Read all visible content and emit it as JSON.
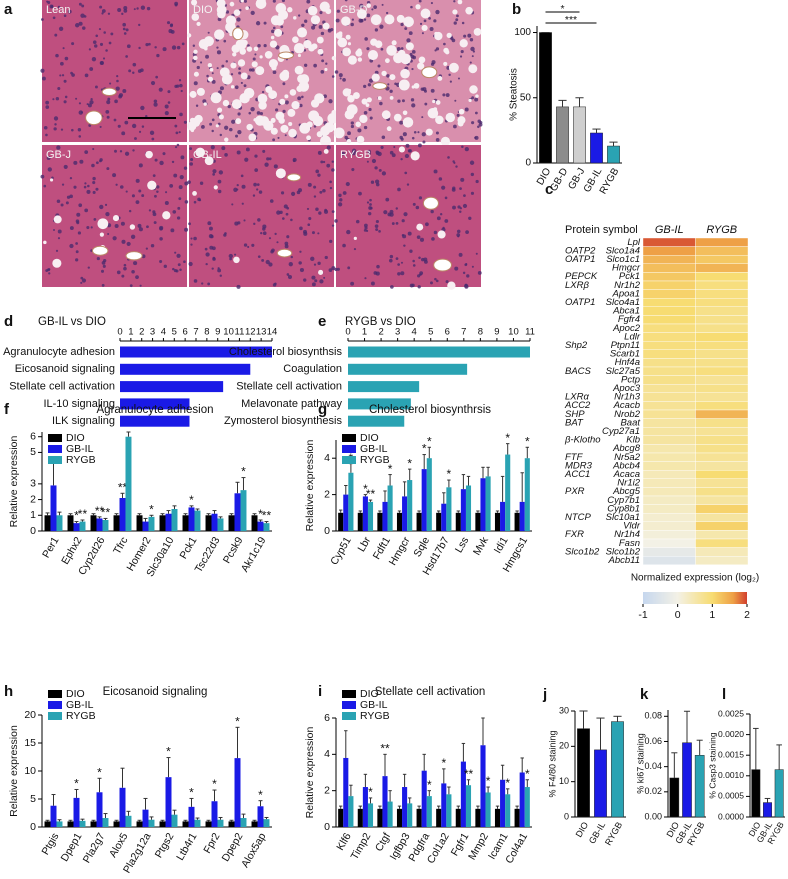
{
  "chart_data": [
    {
      "type": "micrograph",
      "panel": "a",
      "labels": [
        "Lean",
        "DIO",
        "GB-D",
        "GB-J",
        "GB-IL",
        "RYGB"
      ]
    },
    {
      "type": "bar",
      "panel": "b",
      "ylabel": "% Steatosis",
      "categories": [
        "DIO",
        "GB-D",
        "GB-J",
        "GB-IL",
        "RYGB"
      ],
      "values": [
        100,
        43,
        43,
        23,
        13
      ],
      "errors": [
        0,
        5,
        7,
        3,
        3
      ],
      "colors": [
        "#000000",
        "#8c8c8c",
        "#cfcfcf",
        "#1a1ae6",
        "#2aa3b3"
      ],
      "ylim": [
        0,
        105
      ],
      "yticks": [
        0,
        50,
        100
      ],
      "annotations": [
        "*",
        "***"
      ]
    },
    {
      "type": "heatmap",
      "panel": "c",
      "row_header": "Protein symbol",
      "columns": [
        "GB-IL",
        "RYGB"
      ],
      "rows": [
        "Lpl",
        "Slco1a4",
        "Slco1c1",
        "Hmgcr",
        "Pck1",
        "Nr1h2",
        "Apoa1",
        "Slco4a1",
        "Abca1",
        "Fgfr4",
        "Apoc2",
        "Ldlr",
        "Ptpn11",
        "Scarb1",
        "Hnf4a",
        "Slc27a5",
        "Pctp",
        "Apoc3",
        "Nr1h3",
        "Acacb",
        "Nrob2",
        "Baat",
        "Cyp27a1",
        "Klb",
        "Abcg8",
        "Nr5a2",
        "Abcb4",
        "Acaca",
        "Nr1i2",
        "Abcg5",
        "Cyp7b1",
        "Cyp8b1",
        "Slc10a1",
        "Vldr",
        "Nr1h4",
        "Fasn",
        "Slco1b2",
        "Abcb11"
      ],
      "protein_symbols": [
        null,
        "OATP2",
        "OATP1",
        null,
        "PEPCK",
        "LXRβ",
        null,
        "OATP1",
        null,
        null,
        null,
        null,
        "Shp2",
        null,
        null,
        "BACS",
        null,
        null,
        "LXRα",
        "ACC2",
        "SHP",
        "BAT",
        null,
        "β-Klotho",
        null,
        "FTF",
        "MDR3",
        "ACC1",
        null,
        "PXR",
        null,
        null,
        "NTCP",
        null,
        "FXR",
        null,
        "Slco1b2",
        null
      ],
      "values": [
        [
          1.9,
          1.6
        ],
        [
          1.6,
          1.3
        ],
        [
          1.4,
          1.2
        ],
        [
          1.3,
          1.4
        ],
        [
          1.2,
          1.0
        ],
        [
          1.1,
          0.9
        ],
        [
          1.1,
          0.9
        ],
        [
          1.0,
          0.9
        ],
        [
          1.0,
          0.8
        ],
        [
          1.0,
          0.8
        ],
        [
          0.9,
          0.8
        ],
        [
          0.9,
          1.0
        ],
        [
          0.9,
          0.9
        ],
        [
          0.9,
          0.8
        ],
        [
          0.8,
          0.8
        ],
        [
          0.8,
          0.9
        ],
        [
          0.8,
          0.7
        ],
        [
          0.7,
          0.8
        ],
        [
          0.7,
          0.7
        ],
        [
          0.7,
          0.9
        ],
        [
          0.7,
          1.4
        ],
        [
          0.6,
          0.8
        ],
        [
          0.6,
          0.7
        ],
        [
          0.6,
          0.8
        ],
        [
          0.5,
          0.8
        ],
        [
          0.5,
          0.7
        ],
        [
          0.5,
          0.6
        ],
        [
          0.4,
          1.0
        ],
        [
          0.4,
          0.7
        ],
        [
          0.4,
          0.8
        ],
        [
          0.3,
          0.6
        ],
        [
          0.3,
          1.1
        ],
        [
          0.2,
          0.6
        ],
        [
          0.2,
          1.1
        ],
        [
          0.1,
          0.5
        ],
        [
          0.0,
          0.9
        ],
        [
          -0.3,
          0.4
        ],
        [
          -0.5,
          0.3
        ]
      ],
      "colorbar_label": "Normalized expression (log₂)",
      "colorscale": [
        [
          -1,
          "#c6d7ee"
        ],
        [
          0,
          "#f3f1e6"
        ],
        [
          1,
          "#f7dc72"
        ],
        [
          1.6,
          "#eea046"
        ],
        [
          2,
          "#d2402e"
        ]
      ],
      "cticks": [
        -1,
        0,
        1,
        2
      ]
    },
    {
      "type": "hbar",
      "panel": "d",
      "title": "GB-IL vs DIO",
      "categories": [
        "Agranulocyte adhesion",
        "Eicosanoid signaling",
        "Stellate cell activation",
        "IL-10 signaling",
        "ILK signaling"
      ],
      "values": [
        14,
        12,
        9.5,
        6.4,
        6.4
      ],
      "color": "#1a1ae6",
      "xlim": [
        0,
        14
      ],
      "xticks": [
        0,
        1,
        2,
        3,
        4,
        5,
        6,
        7,
        8,
        9,
        10,
        11,
        12,
        13,
        14
      ]
    },
    {
      "type": "hbar",
      "panel": "e",
      "title": "RYGB vs DIO",
      "categories": [
        "Cholesterol biosynthsis",
        "Coagulation",
        "Stellate cell activation",
        "Melavonate pathway",
        "Zymosterol biosynthesis"
      ],
      "values": [
        11,
        7.2,
        4.3,
        3.8,
        3.4
      ],
      "color": "#2aa3b3",
      "xlim": [
        0,
        11
      ],
      "xticks": [
        0,
        1,
        2,
        3,
        4,
        5,
        6,
        7,
        8,
        9,
        10,
        11
      ]
    },
    {
      "type": "grouped_bar",
      "panel": "f",
      "title": "Agranulocyte adhesion",
      "ylabel": "Relative expression",
      "categories": [
        "Per1",
        "Ephx2",
        "Cyp2d26",
        "Tfrc",
        "Homer2",
        "Slc30a10",
        "Pck1",
        "Tsc22d3",
        "Pcsk9",
        "Akr1c19"
      ],
      "ylim": [
        0,
        6.3
      ],
      "yticks": [
        0,
        1,
        2,
        3,
        5,
        6
      ],
      "series": [
        {
          "name": "DIO",
          "color": "#000000",
          "values": [
            1,
            1,
            1,
            1,
            1,
            1,
            1,
            1,
            1,
            1
          ],
          "errors": [
            0.15,
            0.1,
            0.1,
            0.1,
            0.1,
            0.1,
            0.1,
            0.1,
            0.1,
            0.1
          ]
        },
        {
          "name": "GB-IL",
          "color": "#1a1ae6",
          "values": [
            2.9,
            0.5,
            0.8,
            2.1,
            0.6,
            1.1,
            1.5,
            1.1,
            2.4,
            0.6
          ],
          "errors": [
            1.4,
            0.1,
            0.1,
            0.3,
            0.2,
            0.2,
            0.1,
            0.2,
            0.7,
            0.1
          ],
          "significance": [
            null,
            "*",
            "**",
            "**",
            null,
            null,
            "*",
            null,
            null,
            "*"
          ]
        },
        {
          "name": "RYGB",
          "color": "#2aa3b3",
          "values": [
            1.0,
            0.6,
            0.7,
            6.0,
            0.9,
            1.4,
            1.3,
            0.8,
            2.6,
            0.5
          ],
          "errors": [
            0.2,
            0.1,
            0.1,
            0.3,
            0.1,
            0.2,
            0.1,
            0.1,
            0.8,
            0.1
          ],
          "significance": [
            null,
            "**",
            "**",
            null,
            "*",
            null,
            null,
            null,
            "*",
            "**"
          ]
        }
      ]
    },
    {
      "type": "grouped_bar",
      "panel": "g",
      "title": "Cholesterol biosynthrsis",
      "ylabel": "Relative expression",
      "categories": [
        "Cyp51",
        "Lbr",
        "Fdft1",
        "Hmgcr",
        "Sqle",
        "Hsd17b7",
        "Lss",
        "Mvk",
        "Idi1",
        "Hmgcs1"
      ],
      "ylim": [
        0,
        5
      ],
      "yticks": [
        0,
        2,
        4
      ],
      "series": [
        {
          "name": "DIO",
          "color": "#000000",
          "values": [
            1,
            1,
            1,
            1,
            1,
            1,
            1,
            1,
            1,
            1
          ],
          "errors": [
            0.15,
            0.1,
            0.1,
            0.1,
            0.1,
            0.1,
            0.1,
            0.1,
            0.1,
            0.1
          ]
        },
        {
          "name": "GB-IL",
          "color": "#1a1ae6",
          "values": [
            2.0,
            1.9,
            1.6,
            1.9,
            3.4,
            1.5,
            2.3,
            2.9,
            1.6,
            1.6
          ],
          "errors": [
            0.5,
            0.1,
            0.6,
            0.8,
            0.8,
            0.6,
            0.8,
            0.6,
            1.4,
            1.6
          ],
          "significance": [
            null,
            "*",
            null,
            null,
            "*",
            null,
            null,
            null,
            null,
            null
          ]
        },
        {
          "name": "RYGB",
          "color": "#2aa3b3",
          "values": [
            3.2,
            1.6,
            2.5,
            2.8,
            4.0,
            2.4,
            2.5,
            3.0,
            4.2,
            4.0
          ],
          "errors": [
            0.5,
            0.1,
            0.6,
            0.6,
            0.6,
            0.4,
            0.5,
            0.5,
            0.6,
            0.6
          ],
          "significance": [
            "*",
            "**",
            "*",
            "*",
            "*",
            "*",
            null,
            null,
            "*",
            "*"
          ]
        }
      ]
    },
    {
      "type": "grouped_bar",
      "panel": "h",
      "title": "Eicosanoid signaling",
      "ylabel": "Relative expression",
      "categories": [
        "Ptgis",
        "Dpep1",
        "Pla2g7",
        "Alox5",
        "Pla2g12a",
        "Ptgs2",
        "Ltb4r1",
        "Fpr2",
        "Dpep2",
        "Alox5ap"
      ],
      "ylim": [
        0,
        20
      ],
      "yticks": [
        0,
        5,
        10,
        15,
        20
      ],
      "series": [
        {
          "name": "DIO",
          "color": "#000000",
          "values": [
            1,
            1,
            1,
            1,
            1,
            1,
            1,
            1,
            1,
            1
          ],
          "errors": [
            0.2,
            0.2,
            0.2,
            0.2,
            0.2,
            0.2,
            0.2,
            0.2,
            0.2,
            0.2
          ]
        },
        {
          "name": "GB-IL",
          "color": "#1a1ae6",
          "values": [
            3.8,
            5.2,
            6.2,
            7.0,
            3.1,
            8.9,
            3.6,
            4.6,
            12.3,
            3.7
          ],
          "errors": [
            2,
            1.5,
            2.5,
            3.5,
            2,
            3.5,
            1.5,
            2,
            5.5,
            1
          ],
          "significance": [
            null,
            "*",
            "*",
            null,
            null,
            "*",
            "*",
            "*",
            "*",
            "*"
          ]
        },
        {
          "name": "RYGB",
          "color": "#2aa3b3",
          "values": [
            1.0,
            1.1,
            1.6,
            2.0,
            1.3,
            2.2,
            1.3,
            1.3,
            1.6,
            1.4
          ],
          "errors": [
            0.3,
            0.3,
            0.8,
            0.8,
            0.5,
            0.8,
            0.3,
            0.4,
            0.7,
            0.3
          ]
        }
      ]
    },
    {
      "type": "grouped_bar",
      "panel": "i",
      "title": "Stellate cell activation",
      "ylabel": "Relative expression",
      "categories": [
        "Klf6",
        "Timp2",
        "Ctgf",
        "Igfbp3",
        "Pdgfra",
        "Col1a2",
        "Fgfr1",
        "Mmp2",
        "Icam1",
        "Col4a1"
      ],
      "ylim": [
        0,
        6
      ],
      "yticks": [
        0,
        2,
        4,
        6
      ],
      "series": [
        {
          "name": "DIO",
          "color": "#000000",
          "values": [
            1,
            1,
            1,
            1,
            1,
            1,
            1,
            1,
            1,
            1
          ],
          "errors": [
            0.15,
            0.15,
            0.15,
            0.15,
            0.15,
            0.15,
            0.15,
            0.15,
            0.15,
            0.15
          ]
        },
        {
          "name": "GB-IL",
          "color": "#1a1ae6",
          "values": [
            3.8,
            2.2,
            2.8,
            2.2,
            3.1,
            2.4,
            3.6,
            4.5,
            2.6,
            3.0
          ],
          "errors": [
            1.5,
            0.7,
            1.2,
            0.7,
            0.9,
            0.8,
            1,
            1.5,
            0.8,
            0.8
          ],
          "significance": [
            null,
            null,
            "**",
            null,
            null,
            "*",
            null,
            null,
            null,
            null
          ]
        },
        {
          "name": "RYGB",
          "color": "#2aa3b3",
          "values": [
            1.7,
            1.3,
            1.4,
            1.3,
            1.7,
            1.8,
            2.3,
            1.9,
            1.8,
            2.2
          ],
          "errors": [
            0.6,
            0.3,
            0.6,
            0.3,
            0.3,
            0.4,
            0.3,
            0.3,
            0.3,
            0.4
          ],
          "significance": [
            null,
            "*",
            null,
            null,
            "*",
            null,
            "**",
            "*",
            "*",
            "*"
          ]
        }
      ]
    },
    {
      "type": "bar",
      "panel": "j",
      "ylabel": "% F4/80 staining",
      "categories": [
        "DIO",
        "GB-IL",
        "RYGB"
      ],
      "values": [
        25,
        19,
        27
      ],
      "errors": [
        5,
        9,
        1.5
      ],
      "colors": [
        "#000000",
        "#1a1ae6",
        "#2aa3b3"
      ],
      "ylim": [
        0,
        30
      ],
      "yticks": [
        0,
        10,
        20,
        30
      ]
    },
    {
      "type": "bar",
      "panel": "k",
      "ylabel": "% ki67 staining",
      "categories": [
        "DIO",
        "GB-IL",
        "RYGB"
      ],
      "values": [
        0.031,
        0.059,
        0.049
      ],
      "errors": [
        0.02,
        0.025,
        0.012
      ],
      "colors": [
        "#000000",
        "#1a1ae6",
        "#2aa3b3"
      ],
      "ylim": [
        0,
        0.085
      ],
      "yticks": [
        {
          "value": 0,
          "label": "0.00"
        },
        {
          "value": 0.02,
          "label": "0.02"
        },
        {
          "value": 0.04,
          "label": "0.04"
        },
        {
          "value": 0.06,
          "label": "0.06"
        },
        {
          "value": 0.08,
          "label": "0.08"
        }
      ]
    },
    {
      "type": "bar",
      "panel": "l",
      "ylabel": "% Casp3 staining",
      "categories": [
        "DIO",
        "GB-IL",
        "RYGB"
      ],
      "values": [
        0.00115,
        0.00035,
        0.00115
      ],
      "errors": [
        0.001,
        0.0001,
        0.0006
      ],
      "colors": [
        "#000000",
        "#1a1ae6",
        "#2aa3b3"
      ],
      "ylim": [
        0,
        0.0025
      ],
      "yticks": [
        {
          "value": 0,
          "label": "0.0000"
        },
        {
          "value": 0.0005,
          "label": "0.0005"
        },
        {
          "value": 0.001,
          "label": "0.0010"
        },
        {
          "value": 0.0015,
          "label": "0.0015"
        },
        {
          "value": 0.002,
          "label": "0.0020"
        },
        {
          "value": 0.0025,
          "label": "0.0025"
        }
      ]
    }
  ]
}
